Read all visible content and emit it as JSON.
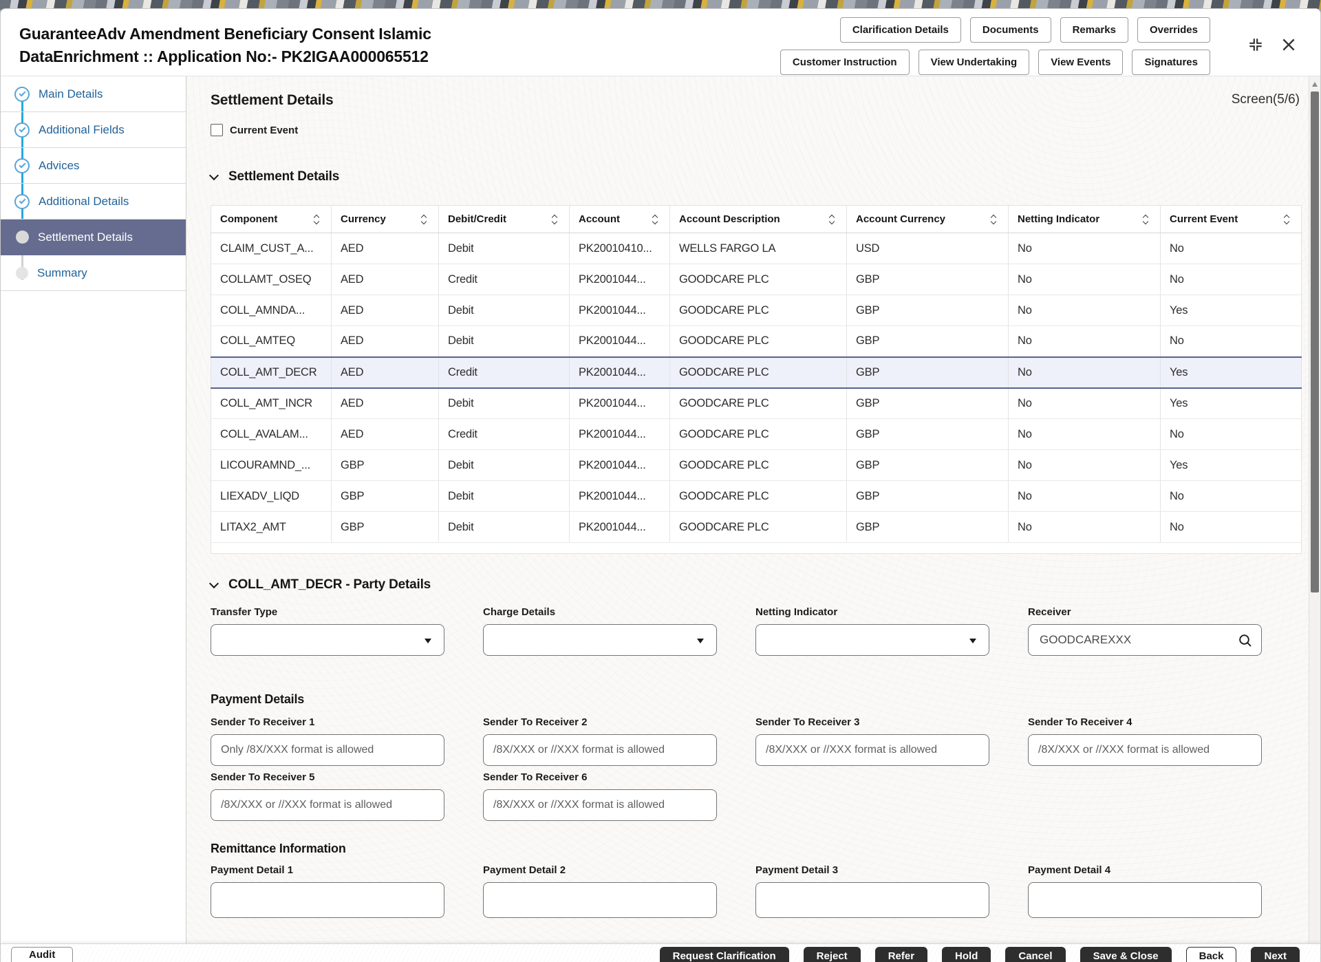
{
  "colors": {
    "accent_blue": "#2aa6df",
    "sidebar_link": "#21639a",
    "active_step_bg": "#666c8f",
    "selected_row_bg": "#eef0fa",
    "selected_row_border": "#59628c",
    "dark_button_bg": "#2e2e2e",
    "content_bg": "#faf9f8"
  },
  "header": {
    "title_line1": "GuaranteeAdv Amendment Beneficiary Consent Islamic",
    "title_line2": "DataEnrichment :: Application No:- PK2IGAA000065512",
    "buttons_row1": [
      "Clarification Details",
      "Documents",
      "Remarks",
      "Overrides"
    ],
    "buttons_row2": [
      "Customer Instruction",
      "View Undertaking",
      "View Events",
      "Signatures"
    ]
  },
  "sidebar": {
    "items": [
      {
        "label": "Main Details",
        "state": "completed"
      },
      {
        "label": "Additional Fields",
        "state": "completed"
      },
      {
        "label": "Advices",
        "state": "completed"
      },
      {
        "label": "Additional Details",
        "state": "completed"
      },
      {
        "label": "Settlement Details",
        "state": "active"
      },
      {
        "label": "Summary",
        "state": "pending"
      }
    ]
  },
  "main": {
    "page_title": "Settlement Details",
    "screen_indicator": "Screen(5/6)",
    "current_event_checkbox": {
      "label": "Current Event",
      "checked": false
    },
    "settlement_section_title": "Settlement Details",
    "table": {
      "columns": [
        "Component",
        "Currency",
        "Debit/Credit",
        "Account",
        "Account Description",
        "Account Currency",
        "Netting Indicator",
        "Current Event"
      ],
      "rows": [
        [
          "CLAIM_CUST_A...",
          "AED",
          "Debit",
          "PK20010410...",
          "WELLS FARGO LA",
          "USD",
          "No",
          "No"
        ],
        [
          "COLLAMT_OSEQ",
          "AED",
          "Credit",
          "PK2001044...",
          "GOODCARE PLC",
          "GBP",
          "No",
          "No"
        ],
        [
          "COLL_AMNDA...",
          "AED",
          "Debit",
          "PK2001044...",
          "GOODCARE PLC",
          "GBP",
          "No",
          "Yes"
        ],
        [
          "COLL_AMTEQ",
          "AED",
          "Debit",
          "PK2001044...",
          "GOODCARE PLC",
          "GBP",
          "No",
          "No"
        ],
        [
          "COLL_AMT_DECR",
          "AED",
          "Credit",
          "PK2001044...",
          "GOODCARE PLC",
          "GBP",
          "No",
          "Yes"
        ],
        [
          "COLL_AMT_INCR",
          "AED",
          "Debit",
          "PK2001044...",
          "GOODCARE PLC",
          "GBP",
          "No",
          "Yes"
        ],
        [
          "COLL_AVALAM...",
          "AED",
          "Credit",
          "PK2001044...",
          "GOODCARE PLC",
          "GBP",
          "No",
          "No"
        ],
        [
          "LICOURAMND_...",
          "GBP",
          "Debit",
          "PK2001044...",
          "GOODCARE PLC",
          "GBP",
          "No",
          "Yes"
        ],
        [
          "LIEXADV_LIQD",
          "GBP",
          "Debit",
          "PK2001044...",
          "GOODCARE PLC",
          "GBP",
          "No",
          "No"
        ],
        [
          "LITAX2_AMT",
          "GBP",
          "Debit",
          "PK2001044...",
          "GOODCARE PLC",
          "GBP",
          "No",
          "No"
        ]
      ],
      "selected_row_index": 4
    },
    "party_section": {
      "title": "COLL_AMT_DECR - Party Details",
      "fields": [
        {
          "label": "Transfer Type",
          "type": "select",
          "value": ""
        },
        {
          "label": "Charge Details",
          "type": "select",
          "value": ""
        },
        {
          "label": "Netting Indicator",
          "type": "select",
          "value": ""
        },
        {
          "label": "Receiver",
          "type": "lookup",
          "value": "GOODCAREXXX"
        }
      ]
    },
    "payment_details": {
      "title": "Payment Details",
      "fields": [
        {
          "label": "Sender To Receiver 1",
          "placeholder": "Only /8X/XXX format is allowed"
        },
        {
          "label": "Sender To Receiver 2",
          "placeholder": "/8X/XXX or //XXX format is allowed"
        },
        {
          "label": "Sender To Receiver 3",
          "placeholder": "/8X/XXX or //XXX format is allowed"
        },
        {
          "label": "Sender To Receiver 4",
          "placeholder": "/8X/XXX or //XXX format is allowed"
        },
        {
          "label": "Sender To Receiver 5",
          "placeholder": "/8X/XXX or //XXX format is allowed"
        },
        {
          "label": "Sender To Receiver 6",
          "placeholder": "/8X/XXX or //XXX format is allowed"
        }
      ]
    },
    "remittance": {
      "title": "Remittance Information",
      "fields": [
        {
          "label": "Payment Detail 1",
          "value": ""
        },
        {
          "label": "Payment Detail 2",
          "value": ""
        },
        {
          "label": "Payment Detail 3",
          "value": ""
        },
        {
          "label": "Payment Detail 4",
          "value": ""
        }
      ]
    }
  },
  "footer": {
    "audit_label": "Audit",
    "actions": [
      {
        "label": "Request Clarification",
        "variant": "dark"
      },
      {
        "label": "Reject",
        "variant": "dark"
      },
      {
        "label": "Refer",
        "variant": "dark"
      },
      {
        "label": "Hold",
        "variant": "dark"
      },
      {
        "label": "Cancel",
        "variant": "dark"
      },
      {
        "label": "Save & Close",
        "variant": "dark"
      },
      {
        "label": "Back",
        "variant": "light"
      },
      {
        "label": "Next",
        "variant": "dark"
      }
    ]
  }
}
